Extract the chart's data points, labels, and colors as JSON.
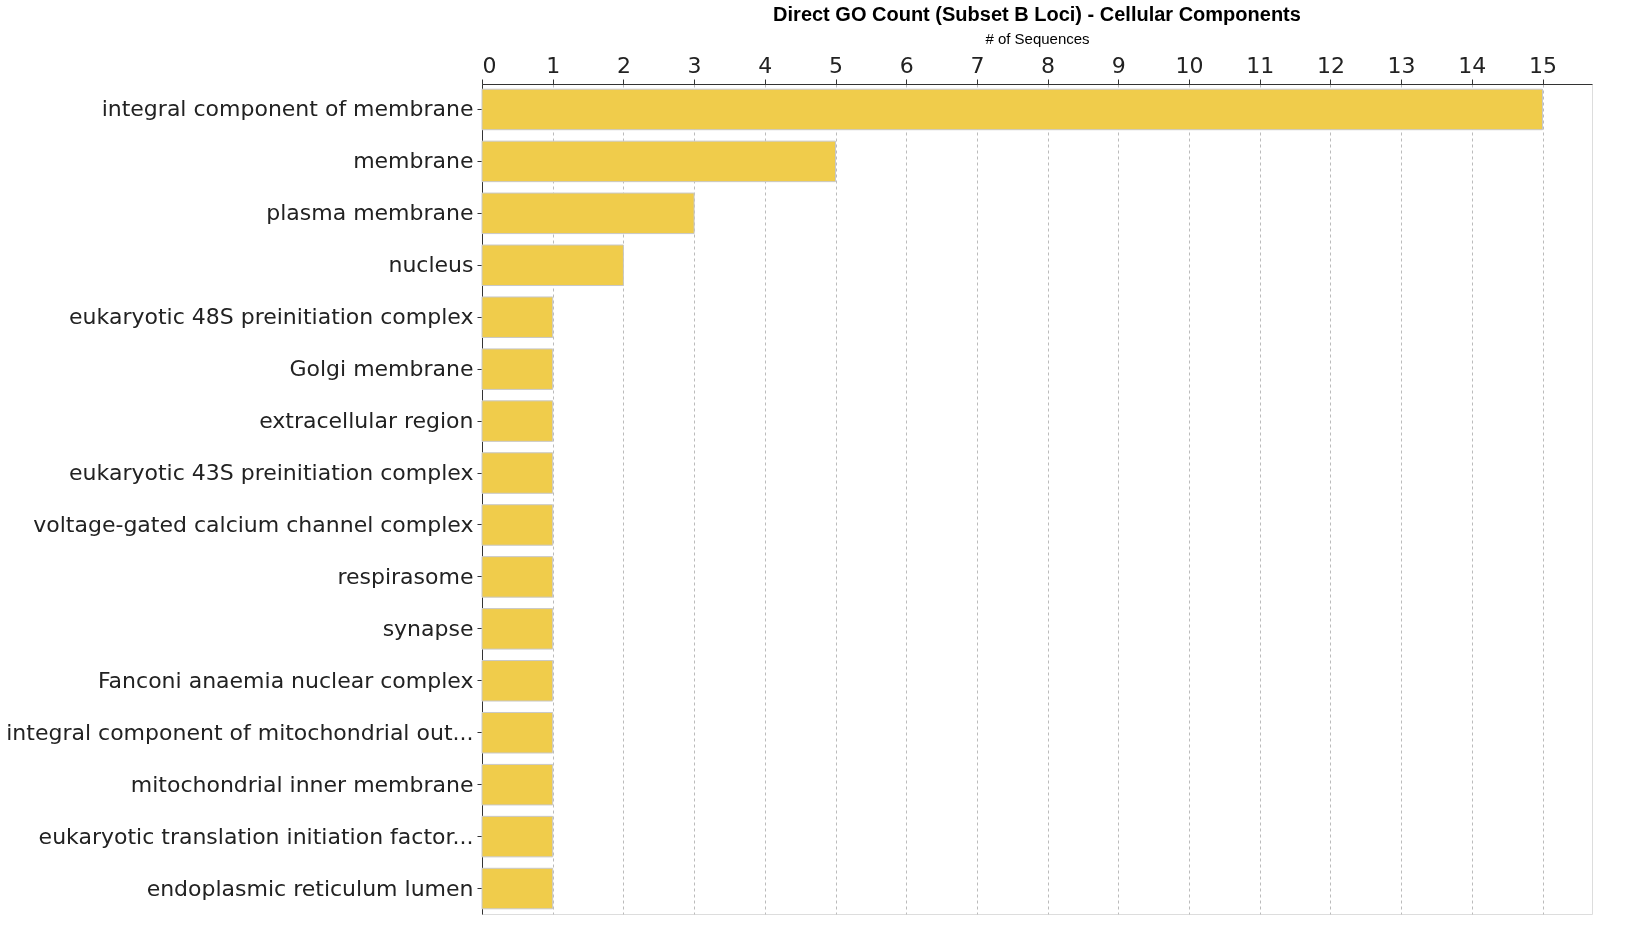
{
  "chart_data": {
    "type": "bar",
    "orientation": "horizontal",
    "title": "Direct GO Count (Subset B Loci) - Cellular Components",
    "xlabel": "# of Sequences",
    "categories": [
      "integral component of membrane",
      "membrane",
      "plasma membrane",
      "nucleus",
      "eukaryotic 48S preinitiation complex",
      "Golgi membrane",
      "extracellular region",
      "eukaryotic 43S preinitiation complex",
      "voltage-gated calcium channel complex",
      "respirasome",
      "synapse",
      "Fanconi anaemia nuclear complex",
      "integral component of mitochondrial out...",
      "mitochondrial inner membrane",
      "eukaryotic translation initiation factor...",
      "endoplasmic reticulum lumen"
    ],
    "values": [
      15,
      5,
      3,
      2,
      1,
      1,
      1,
      1,
      1,
      1,
      1,
      1,
      1,
      1,
      1,
      1
    ],
    "color": "#f0cc4b",
    "xlim": [
      0,
      15.7
    ],
    "xticks": [
      0,
      1,
      2,
      3,
      4,
      5,
      6,
      7,
      8,
      9,
      10,
      11,
      12,
      13,
      14,
      15
    ],
    "grid": "x"
  }
}
